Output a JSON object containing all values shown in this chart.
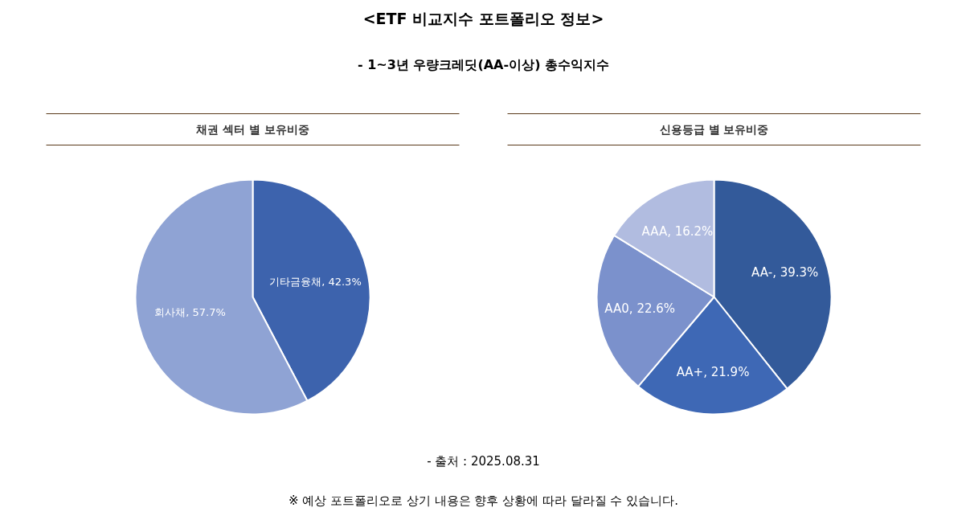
{
  "chart_data": [
    {
      "type": "other",
      "title": "<ETF 비교지수 포트폴리오 정보>",
      "subtitle": "- 1~3년 우량크레딧(AA-이상) 총수익지수"
    },
    {
      "type": "pie",
      "title": "채권 섹터 별 보유비중",
      "categories": [
        "기타금융채",
        "회사채"
      ],
      "values": [
        42.3,
        57.7
      ],
      "colors": [
        "#3d63ad",
        "#8fa3d4"
      ],
      "value_labels": [
        "42.3%",
        "57.7%"
      ]
    },
    {
      "type": "pie",
      "title": "신용등급 별 보유비중",
      "categories": [
        "AA-",
        "AA+",
        "AA0",
        "AAA"
      ],
      "values": [
        39.3,
        21.9,
        22.6,
        16.2
      ],
      "colors": [
        "#335a9a",
        "#3e68b5",
        "#7b91cc",
        "#b1bce0"
      ],
      "value_labels": [
        "39.3%",
        "21.9%",
        "22.6%",
        "16.2%"
      ]
    },
    {
      "type": "other",
      "annotations": [
        "- 출처 : 2025.08.31",
        "※ 예상 포트폴리오로 상기 내용은 향후 상황에 따라 달라질 수 있습니다."
      ]
    }
  ]
}
